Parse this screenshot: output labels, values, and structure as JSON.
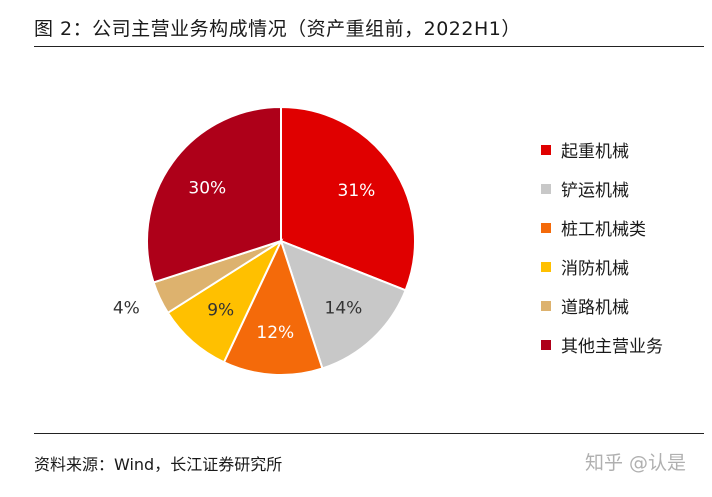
{
  "title": "图 2：公司主营业务构成情况（资产重组前，2022H1）",
  "source": "资料来源：Wind，长江证券研究所",
  "watermark": "知乎 @认是",
  "chart_data": {
    "type": "pie",
    "title": "图 2：公司主营业务构成情况（资产重组前，2022H1）",
    "legend_position": "right",
    "slices": [
      {
        "name": "起重机械",
        "value": 31,
        "label": "31%",
        "color": "#E00000"
      },
      {
        "name": "铲运机械",
        "value": 14,
        "label": "14%",
        "color": "#C8C8C8"
      },
      {
        "name": "桩工机械类",
        "value": 12,
        "label": "12%",
        "color": "#F46A0A"
      },
      {
        "name": "消防机械",
        "value": 9,
        "label": "9%",
        "color": "#FFC000"
      },
      {
        "name": "道路机械",
        "value": 4,
        "label": "4%",
        "color": "#DDB26E"
      },
      {
        "name": "其他主营业务",
        "value": 30,
        "label": "30%",
        "color": "#AE0019"
      }
    ]
  }
}
